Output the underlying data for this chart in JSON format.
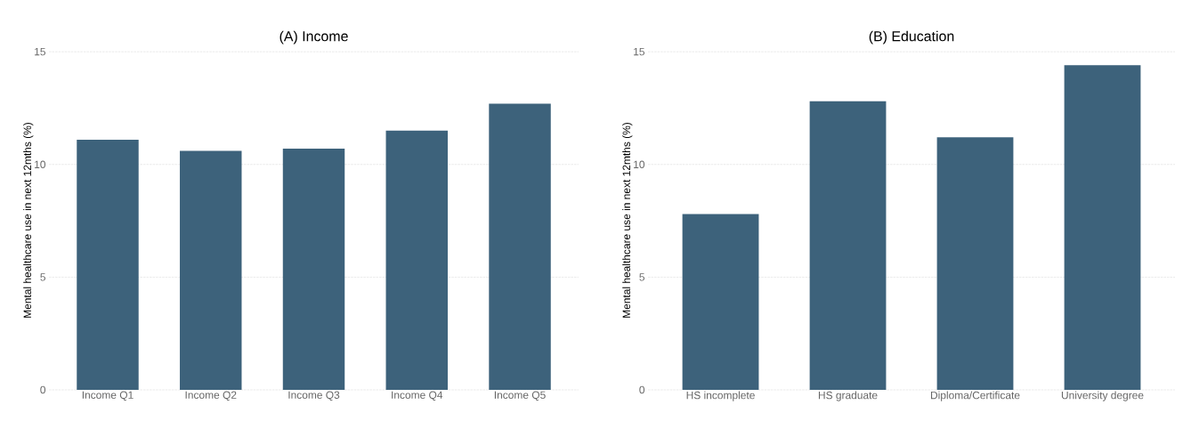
{
  "chart_data": [
    {
      "type": "bar",
      "title": "(A) Income",
      "ylabel": "Mental healthcare use in next 12mths (%)",
      "categories": [
        "Income Q1",
        "Income Q2",
        "Income Q3",
        "Income Q4",
        "Income Q5"
      ],
      "values": [
        11.1,
        10.6,
        10.7,
        11.5,
        12.7
      ],
      "color": "#3d627b",
      "ylim": [
        0,
        15
      ],
      "yticks": [
        0,
        5,
        10,
        15
      ],
      "grid": "y"
    },
    {
      "type": "bar",
      "title": "(B) Education",
      "ylabel": "Mental healthcare use in next 12mths (%)",
      "categories": [
        "HS incomplete",
        "HS graduate",
        "Diploma/Certificate",
        "University degree"
      ],
      "values": [
        7.8,
        12.8,
        11.2,
        14.4
      ],
      "color": "#3d627b",
      "ylim": [
        0,
        15
      ],
      "yticks": [
        0,
        5,
        10,
        15
      ],
      "grid": "y"
    }
  ]
}
